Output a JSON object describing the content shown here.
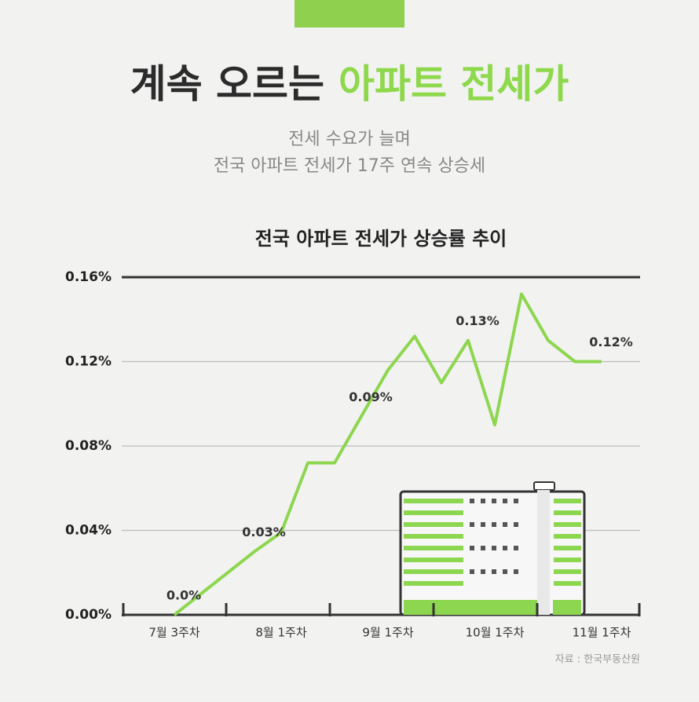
{
  "header": {
    "title_dark": "계속 오르는",
    "title_green": "아파트 전세가",
    "subtitle": [
      "전세 수요가 늘며",
      "전국 아파트 전세가 17주 연속 상승세"
    ]
  },
  "chart_data": {
    "type": "line",
    "title": "전국 아파트 전세가 상승률 추이",
    "categories": [
      "7월 3주차",
      null,
      null,
      null,
      "8월 1주차",
      null,
      null,
      null,
      "9월 1주차",
      null,
      null,
      null,
      "10월 1주차",
      null,
      null,
      null,
      "11월 1주차"
    ],
    "series": [
      {
        "name": "전국 아파트 전세가 상승률",
        "color": "#8dd64f",
        "values": [
          0,
          0.01,
          0.02,
          0.03,
          0.039,
          0.072,
          0.072,
          0.094,
          0.116,
          0.132,
          0.11,
          0.13,
          0.09,
          0.152,
          0.13,
          0.12,
          0.12
        ],
        "value_labels": [
          "0.0%",
          null,
          null,
          "0.03%",
          null,
          null,
          null,
          "0.09%",
          null,
          null,
          null,
          "0.13%",
          null,
          null,
          null,
          null,
          "0.12%"
        ]
      }
    ],
    "ylim": [
      0,
      0.16
    ],
    "yticks": [
      {
        "value": 0,
        "label": "0.00%"
      },
      {
        "value": 0.04,
        "label": "0.04%"
      },
      {
        "value": 0.08,
        "label": "0.08%"
      },
      {
        "value": 0.12,
        "label": "0.12%"
      },
      {
        "value": 0.16,
        "label": "0.16%"
      }
    ],
    "grid": true,
    "source": "자료 : 한국부동산원"
  }
}
